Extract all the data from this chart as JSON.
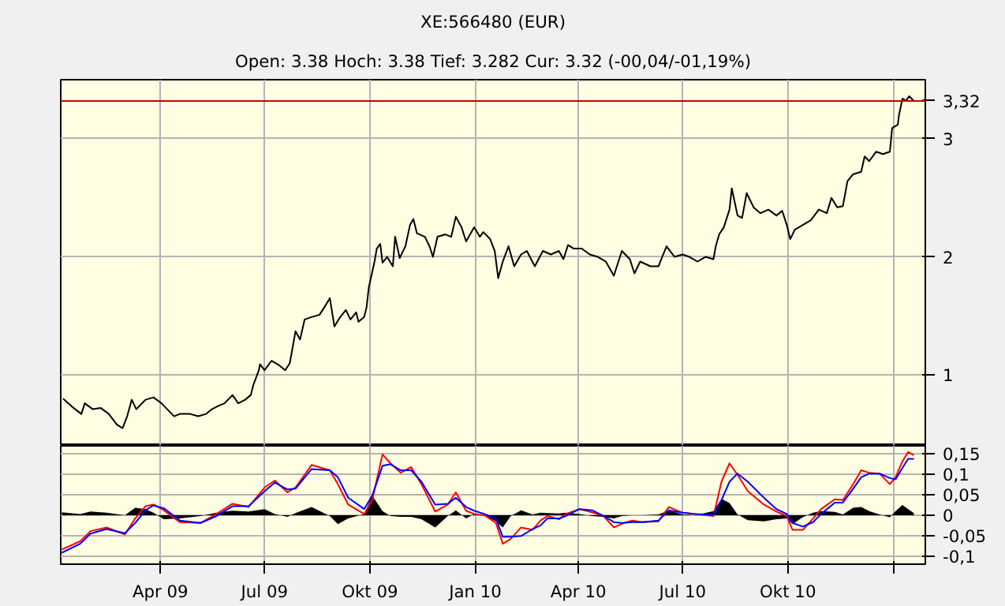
{
  "chart_data": [
    {
      "type": "line",
      "title": "XE:566480 (EUR)",
      "subtitle": "Open: 3.38 Hoch: 3.38 Tief: 3.282 Cur: 3.32 (-00,04/-01,19%)",
      "xlim": [
        "2009-01-04",
        "2011-01-29"
      ],
      "xticks": [
        {
          "value": "2009-04-01",
          "label": null
        },
        {
          "value": "2009-07-01",
          "label": null
        },
        {
          "value": "2009-10-01",
          "label": null
        },
        {
          "value": "2010-01-01",
          "label": null
        },
        {
          "value": "2010-04-01",
          "label": null
        },
        {
          "value": "2010-07-01",
          "label": null
        },
        {
          "value": "2010-10-01",
          "label": null
        },
        {
          "value": "2011-01-01",
          "label": null
        }
      ],
      "ylim": [
        0.4,
        3.5
      ],
      "yticks": [
        1,
        2,
        3
      ],
      "grid": true,
      "tick_labels": "y",
      "ref_lines": [
        {
          "axis": "y",
          "value": 3.32,
          "label": "3,32",
          "color": "#cc0000"
        }
      ],
      "x": [
        "2009-01-06",
        "2009-01-14",
        "2009-01-22",
        "2009-01-25",
        "2009-02-01",
        "2009-02-08",
        "2009-02-15",
        "2009-02-22",
        "2009-02-27",
        "2009-03-03",
        "2009-03-07",
        "2009-03-11",
        "2009-03-19",
        "2009-03-26",
        "2009-04-02",
        "2009-04-09",
        "2009-04-13",
        "2009-04-18",
        "2009-04-27",
        "2009-05-04",
        "2009-05-11",
        "2009-05-16",
        "2009-05-22",
        "2009-05-27",
        "2009-06-03",
        "2009-06-08",
        "2009-06-14",
        "2009-06-19",
        "2009-06-21",
        "2009-06-26",
        "2009-06-27",
        "2009-07-01",
        "2009-07-07",
        "2009-07-14",
        "2009-07-19",
        "2009-07-23",
        "2009-07-26",
        "2009-07-28",
        "2009-08-01",
        "2009-08-05",
        "2009-08-11",
        "2009-08-18",
        "2009-08-22",
        "2009-08-27",
        "2009-08-31",
        "2009-09-05",
        "2009-09-10",
        "2009-09-14",
        "2009-09-19",
        "2009-09-21",
        "2009-09-26",
        "2009-09-28",
        "2009-09-30",
        "2009-10-05",
        "2009-10-07",
        "2009-10-10",
        "2009-10-12",
        "2009-10-16",
        "2009-10-21",
        "2009-10-23",
        "2009-10-27",
        "2009-11-01",
        "2009-11-05",
        "2009-11-08",
        "2009-11-11",
        "2009-11-18",
        "2009-11-22",
        "2009-11-25",
        "2009-11-29",
        "2009-12-06",
        "2009-12-11",
        "2009-12-15",
        "2009-12-20",
        "2009-12-24",
        "2009-12-31",
        "2010-01-05",
        "2010-01-08",
        "2010-01-14",
        "2010-01-18",
        "2010-01-21",
        "2010-01-25",
        "2010-01-30",
        "2010-02-04",
        "2010-02-10",
        "2010-02-15",
        "2010-02-22",
        "2010-03-01",
        "2010-03-08",
        "2010-03-15",
        "2010-03-19",
        "2010-03-23",
        "2010-03-28",
        "2010-04-04",
        "2010-04-11",
        "2010-04-18",
        "2010-04-25",
        "2010-05-02",
        "2010-05-09",
        "2010-05-16",
        "2010-05-20",
        "2010-05-25",
        "2010-06-03",
        "2010-06-10",
        "2010-06-17",
        "2010-06-24",
        "2010-07-01",
        "2010-07-07",
        "2010-07-14",
        "2010-07-21",
        "2010-07-28",
        "2010-07-30",
        "2010-08-02",
        "2010-08-06",
        "2010-08-11",
        "2010-08-13",
        "2010-08-18",
        "2010-08-22",
        "2010-08-26",
        "2010-09-01",
        "2010-09-07",
        "2010-09-14",
        "2010-09-21",
        "2010-09-26",
        "2010-09-30",
        "2010-10-03",
        "2010-10-07",
        "2010-10-14",
        "2010-10-21",
        "2010-10-28",
        "2010-11-04",
        "2010-11-08",
        "2010-11-13",
        "2010-11-18",
        "2010-11-22",
        "2010-11-27",
        "2010-12-04",
        "2010-12-07",
        "2010-12-11",
        "2010-12-17",
        "2010-12-23",
        "2010-12-29",
        "2010-12-31",
        "2011-01-05",
        "2011-01-06",
        "2011-01-09",
        "2011-01-12",
        "2011-01-15",
        "2011-01-19"
      ],
      "series": [
        {
          "color": "#000000",
          "values": [
            0.8,
            0.73,
            0.67,
            0.76,
            0.71,
            0.72,
            0.67,
            0.58,
            0.55,
            0.65,
            0.79,
            0.71,
            0.79,
            0.81,
            0.76,
            0.69,
            0.65,
            0.67,
            0.67,
            0.65,
            0.67,
            0.71,
            0.74,
            0.76,
            0.83,
            0.76,
            0.79,
            0.83,
            0.91,
            1.04,
            1.09,
            1.04,
            1.12,
            1.08,
            1.04,
            1.1,
            1.26,
            1.37,
            1.3,
            1.47,
            1.49,
            1.51,
            1.57,
            1.65,
            1.41,
            1.49,
            1.55,
            1.47,
            1.53,
            1.45,
            1.49,
            1.57,
            1.74,
            1.96,
            2.07,
            2.11,
            1.95,
            2.0,
            1.92,
            2.17,
            1.99,
            2.09,
            2.27,
            2.32,
            2.2,
            2.17,
            2.09,
            2.0,
            2.17,
            2.19,
            2.17,
            2.34,
            2.25,
            2.13,
            2.25,
            2.17,
            2.21,
            2.15,
            2.05,
            1.82,
            1.96,
            2.09,
            1.92,
            2.02,
            2.05,
            1.92,
            2.05,
            2.02,
            2.05,
            1.98,
            2.1,
            2.07,
            2.07,
            2.02,
            2.0,
            1.96,
            1.84,
            2.05,
            1.98,
            1.86,
            1.96,
            1.92,
            1.92,
            2.09,
            2.0,
            2.02,
            2.0,
            1.96,
            2.0,
            1.98,
            2.09,
            2.19,
            2.25,
            2.4,
            2.58,
            2.35,
            2.33,
            2.54,
            2.42,
            2.37,
            2.4,
            2.35,
            2.39,
            2.27,
            2.15,
            2.23,
            2.27,
            2.31,
            2.4,
            2.37,
            2.5,
            2.42,
            2.43,
            2.64,
            2.7,
            2.72,
            2.85,
            2.81,
            2.89,
            2.87,
            2.89,
            3.09,
            3.12,
            3.2,
            3.34,
            3.32,
            3.36,
            3.32
          ]
        }
      ]
    },
    {
      "type": "line",
      "xlim": [
        "2009-01-04",
        "2011-01-29"
      ],
      "xticks": [
        {
          "value": "2009-04-01",
          "label": "Apr 09"
        },
        {
          "value": "2009-07-01",
          "label": "Jul 09"
        },
        {
          "value": "2009-10-01",
          "label": "Okt 09"
        },
        {
          "value": "2010-01-01",
          "label": "Jan 10"
        },
        {
          "value": "2010-04-01",
          "label": "Apr 10"
        },
        {
          "value": "2010-07-01",
          "label": "Jul 10"
        },
        {
          "value": "2010-10-01",
          "label": "Okt 10"
        },
        {
          "value": "2011-01-01",
          "label": null
        }
      ],
      "ylim": [
        -0.12,
        0.17
      ],
      "yticks": [
        {
          "value": 0.15,
          "label": "0,15"
        },
        {
          "value": 0.1,
          "label": "0,1"
        },
        {
          "value": 0.05,
          "label": "0,05"
        },
        0,
        {
          "value": -0.05,
          "label": "-0,05"
        },
        {
          "value": -0.1,
          "label": "-0,1"
        }
      ],
      "grid": true,
      "x": [
        "2009-01-05",
        "2009-01-21",
        "2009-01-30",
        "2009-02-13",
        "2009-03-01",
        "2009-03-10",
        "2009-03-19",
        "2009-03-26",
        "2009-04-04",
        "2009-04-18",
        "2009-05-06",
        "2009-05-20",
        "2009-06-03",
        "2009-06-17",
        "2009-07-01",
        "2009-07-10",
        "2009-07-21",
        "2009-07-28",
        "2009-08-11",
        "2009-08-27",
        "2009-09-03",
        "2009-09-12",
        "2009-09-26",
        "2009-10-03",
        "2009-10-12",
        "2009-10-19",
        "2009-10-28",
        "2009-11-06",
        "2009-11-15",
        "2009-11-27",
        "2009-12-08",
        "2009-12-15",
        "2009-12-24",
        "2009-12-31",
        "2010-01-09",
        "2010-01-19",
        "2010-01-25",
        "2010-02-01",
        "2010-02-10",
        "2010-02-20",
        "2010-02-27",
        "2010-03-05",
        "2010-03-15",
        "2010-03-21",
        "2010-04-02",
        "2010-04-13",
        "2010-04-23",
        "2010-05-02",
        "2010-05-09",
        "2010-05-18",
        "2010-05-27",
        "2010-06-10",
        "2010-06-19",
        "2010-07-01",
        "2010-07-12",
        "2010-07-28",
        "2010-08-04",
        "2010-08-11",
        "2010-08-18",
        "2010-08-27",
        "2010-09-10",
        "2010-09-21",
        "2010-09-30",
        "2010-10-05",
        "2010-10-14",
        "2010-10-23",
        "2010-10-30",
        "2010-11-11",
        "2010-11-18",
        "2010-11-27",
        "2010-12-04",
        "2010-12-11",
        "2010-12-20",
        "2010-12-29",
        "2011-01-03",
        "2011-01-09",
        "2011-01-14",
        "2011-01-19"
      ],
      "series": [
        {
          "type": "area",
          "color": "#000000",
          "values": [
            0.007,
            0.003,
            0.009,
            0.006,
            0.0,
            0.018,
            0.015,
            0.006,
            -0.01,
            -0.008,
            -0.002,
            0.006,
            0.011,
            0.009,
            0.015,
            0.003,
            -0.004,
            0.005,
            0.02,
            -0.002,
            -0.022,
            -0.008,
            0.003,
            0.048,
            0.01,
            -0.002,
            -0.004,
            -0.004,
            -0.01,
            -0.03,
            -0.002,
            0.012,
            -0.008,
            0.003,
            0.0,
            -0.015,
            -0.03,
            -0.002,
            0.012,
            0.002,
            0.006,
            0.005,
            0.004,
            0.006,
            0.003,
            -0.002,
            -0.004,
            -0.008,
            -0.002,
            0.0,
            0.0,
            0.002,
            0.012,
            0.002,
            0.0,
            0.01,
            0.04,
            0.03,
            0.002,
            -0.012,
            -0.015,
            -0.01,
            -0.008,
            -0.022,
            -0.005,
            0.006,
            0.01,
            0.008,
            0.002,
            0.018,
            0.02,
            0.01,
            0.002,
            -0.005,
            0.01,
            0.025,
            0.015,
            0.005
          ]
        },
        {
          "type": "line",
          "color": "#ff0000",
          "values": [
            -0.084,
            -0.064,
            -0.039,
            -0.03,
            -0.047,
            -0.008,
            0.022,
            0.026,
            0.012,
            -0.017,
            -0.019,
            0.003,
            0.028,
            0.02,
            0.068,
            0.085,
            0.056,
            0.068,
            0.123,
            0.11,
            0.076,
            0.026,
            0.003,
            0.037,
            0.149,
            0.127,
            0.104,
            0.118,
            0.076,
            0.009,
            0.026,
            0.056,
            0.011,
            0.003,
            0,
            -0.019,
            -0.07,
            -0.058,
            -0.03,
            -0.036,
            -0.013,
            -0.002,
            -0.01,
            0.003,
            0.015,
            0.007,
            -0.002,
            -0.03,
            -0.021,
            -0.013,
            -0.017,
            -0.015,
            0.02,
            0.006,
            0.003,
            -0.002,
            0.082,
            0.127,
            0.099,
            0.059,
            0.026,
            0.009,
            -0.002,
            -0.036,
            -0.036,
            -0.008,
            0.015,
            0.039,
            0.037,
            0.076,
            0.11,
            0.104,
            0.102,
            0.076,
            0.093,
            0.132,
            0.155,
            0.147
          ]
        },
        {
          "type": "line",
          "color": "#0000ff",
          "values": [
            -0.092,
            -0.07,
            -0.045,
            -0.034,
            -0.044,
            -0.019,
            0.012,
            0.024,
            0.017,
            -0.013,
            -0.019,
            -0.002,
            0.022,
            0.022,
            0.059,
            0.08,
            0.063,
            0.065,
            0.113,
            0.11,
            0.093,
            0.043,
            0.015,
            0.048,
            0.121,
            0.125,
            0.11,
            0.11,
            0.082,
            0.026,
            0.028,
            0.043,
            0.02,
            0.011,
            0.003,
            -0.008,
            -0.053,
            -0.053,
            -0.051,
            -0.034,
            -0.025,
            -0.008,
            -0.008,
            -0.002,
            0.015,
            0.012,
            -0.002,
            -0.017,
            -0.019,
            -0.017,
            -0.017,
            -0.013,
            0.012,
            0.006,
            0.003,
            0.001,
            0.037,
            0.082,
            0.102,
            0.082,
            0.043,
            0.015,
            0.003,
            -0.019,
            -0.028,
            -0.017,
            0.003,
            0.031,
            0.031,
            0.065,
            0.093,
            0.102,
            0.102,
            0.091,
            0.088,
            0.116,
            0.138,
            0.138
          ]
        }
      ]
    }
  ]
}
